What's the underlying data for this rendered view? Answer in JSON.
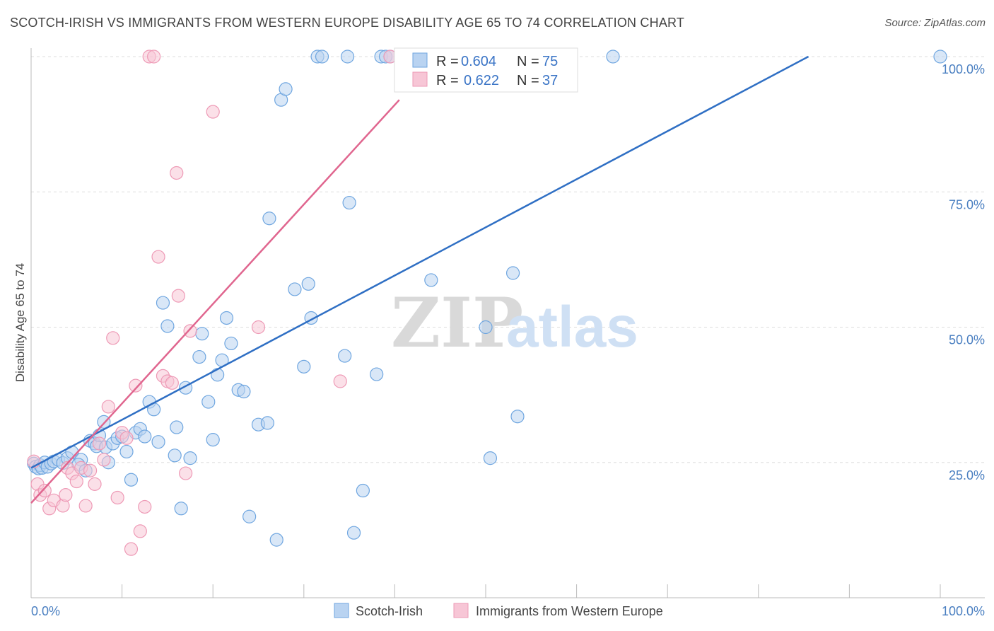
{
  "title": "SCOTCH-IRISH VS IMMIGRANTS FROM WESTERN EUROPE DISABILITY AGE 65 TO 74 CORRELATION CHART",
  "source": "Source: ZipAtlas.com",
  "watermark": {
    "zip": "ZIP",
    "atlas": "atlas"
  },
  "chart_data": {
    "type": "scatter",
    "xlabel": "",
    "ylabel": "Disability Age 65 to 74",
    "xlim": [
      0,
      100
    ],
    "ylim": [
      0,
      100
    ],
    "x_ticks": [
      "0.0%",
      "100.0%"
    ],
    "y_ticks": [
      {
        "value": 25,
        "label": "25.0%"
      },
      {
        "value": 50,
        "label": "50.0%"
      },
      {
        "value": 75,
        "label": "75.0%"
      },
      {
        "value": 100,
        "label": "100.0%"
      }
    ],
    "grid": true,
    "legend_placement": "top-center",
    "series": [
      {
        "name": "Scotch-Irish",
        "color": "#6fa6e0",
        "fill": "#b9d3f1",
        "line_color": "#2f6fc4",
        "R": "0.604",
        "N": "75",
        "trend": [
          [
            0,
            24
          ],
          [
            85.5,
            100
          ]
        ],
        "points": [
          [
            0.3,
            24.8
          ],
          [
            0.5,
            24.2
          ],
          [
            0.8,
            23.9
          ],
          [
            1.0,
            24.5
          ],
          [
            1.2,
            24.0
          ],
          [
            1.5,
            25.0
          ],
          [
            1.8,
            24.2
          ],
          [
            2.2,
            24.8
          ],
          [
            2.5,
            25.2
          ],
          [
            3.0,
            25.5
          ],
          [
            3.5,
            24.9
          ],
          [
            4.0,
            25.8
          ],
          [
            4.5,
            26.9
          ],
          [
            5.5,
            25.5
          ],
          [
            5.2,
            24.6
          ],
          [
            6.0,
            23.5
          ],
          [
            6.5,
            29.0
          ],
          [
            7.0,
            28.5
          ],
          [
            7.2,
            28.0
          ],
          [
            7.5,
            30.0
          ],
          [
            8.0,
            32.5
          ],
          [
            8.2,
            27.8
          ],
          [
            8.5,
            25.0
          ],
          [
            9.0,
            28.5
          ],
          [
            9.5,
            29.5
          ],
          [
            10.0,
            29.8
          ],
          [
            10.5,
            27.0
          ],
          [
            11.0,
            21.8
          ],
          [
            11.5,
            30.5
          ],
          [
            12.0,
            31.2
          ],
          [
            12.5,
            29.8
          ],
          [
            13.0,
            36.2
          ],
          [
            13.5,
            34.8
          ],
          [
            14.0,
            28.8
          ],
          [
            14.5,
            54.5
          ],
          [
            15.0,
            50.2
          ],
          [
            15.8,
            26.3
          ],
          [
            16.0,
            31.5
          ],
          [
            16.5,
            16.5
          ],
          [
            17.0,
            38.8
          ],
          [
            17.5,
            25.8
          ],
          [
            18.5,
            44.5
          ],
          [
            18.8,
            48.8
          ],
          [
            19.5,
            36.2
          ],
          [
            20.0,
            29.2
          ],
          [
            20.5,
            41.2
          ],
          [
            21.0,
            43.9
          ],
          [
            21.5,
            51.7
          ],
          [
            22.0,
            47.0
          ],
          [
            22.8,
            38.4
          ],
          [
            23.4,
            38.1
          ],
          [
            24.0,
            15.0
          ],
          [
            25.0,
            32.0
          ],
          [
            26.0,
            32.3
          ],
          [
            27.0,
            10.7
          ],
          [
            26.2,
            70.1
          ],
          [
            27.5,
            92.0
          ],
          [
            28.0,
            94.0
          ],
          [
            29.0,
            57.0
          ],
          [
            30.5,
            58.0
          ],
          [
            30.0,
            42.7
          ],
          [
            30.8,
            51.7
          ],
          [
            31.5,
            100
          ],
          [
            32.0,
            100
          ],
          [
            34.5,
            44.7
          ],
          [
            34.8,
            100
          ],
          [
            35.0,
            73.0
          ],
          [
            35.5,
            12.0
          ],
          [
            36.5,
            19.8
          ],
          [
            38.0,
            41.3
          ],
          [
            38.5,
            100
          ],
          [
            39.0,
            100
          ],
          [
            39.5,
            100
          ],
          [
            44.0,
            58.7
          ],
          [
            50.0,
            50.0
          ],
          [
            50.5,
            25.8
          ],
          [
            53.0,
            60.0
          ],
          [
            53.5,
            33.5
          ],
          [
            64.0,
            100
          ],
          [
            100,
            100
          ]
        ]
      },
      {
        "name": "Immigrants from Western Europe",
        "color": "#ee9ab6",
        "fill": "#f7c6d6",
        "line_color": "#e0668f",
        "R": "0.622",
        "N": "37",
        "trend": [
          [
            0,
            17.5
          ],
          [
            40.5,
            92
          ]
        ],
        "points": [
          [
            0.3,
            25.2
          ],
          [
            0.7,
            21.0
          ],
          [
            1.0,
            19.0
          ],
          [
            1.5,
            19.8
          ],
          [
            2.0,
            16.5
          ],
          [
            2.5,
            18.0
          ],
          [
            3.5,
            17.0
          ],
          [
            3.8,
            19.0
          ],
          [
            4.0,
            24.0
          ],
          [
            4.5,
            23.0
          ],
          [
            5.0,
            21.5
          ],
          [
            5.5,
            24.0
          ],
          [
            6.0,
            17.0
          ],
          [
            6.5,
            23.5
          ],
          [
            7.0,
            21.0
          ],
          [
            7.5,
            28.5
          ],
          [
            8.0,
            25.5
          ],
          [
            8.5,
            35.3
          ],
          [
            9.0,
            48.0
          ],
          [
            9.5,
            18.5
          ],
          [
            10.0,
            30.5
          ],
          [
            10.5,
            29.5
          ],
          [
            11.0,
            9.0
          ],
          [
            11.5,
            39.2
          ],
          [
            12.0,
            12.3
          ],
          [
            12.5,
            16.8
          ],
          [
            13.0,
            100
          ],
          [
            13.5,
            100
          ],
          [
            14.0,
            63.0
          ],
          [
            14.5,
            41.0
          ],
          [
            15.0,
            40.0
          ],
          [
            15.5,
            39.7
          ],
          [
            16.0,
            78.5
          ],
          [
            16.2,
            55.8
          ],
          [
            17.0,
            23.0
          ],
          [
            17.5,
            49.3
          ],
          [
            20.0,
            89.8
          ],
          [
            25.0,
            50.0
          ],
          [
            34.0,
            40.0
          ],
          [
            39.5,
            100
          ]
        ]
      }
    ]
  },
  "legend_top": {
    "rows": [
      {
        "r_label": "R = ",
        "r_value": "0.604",
        "n_label": "N = ",
        "n_value": "75"
      },
      {
        "r_label": "R = ",
        "r_value": "0.622",
        "n_label": "N = ",
        "n_value": "37"
      }
    ]
  },
  "legend_bottom": {
    "items": [
      "Scotch-Irish",
      "Immigrants from Western Europe"
    ]
  }
}
